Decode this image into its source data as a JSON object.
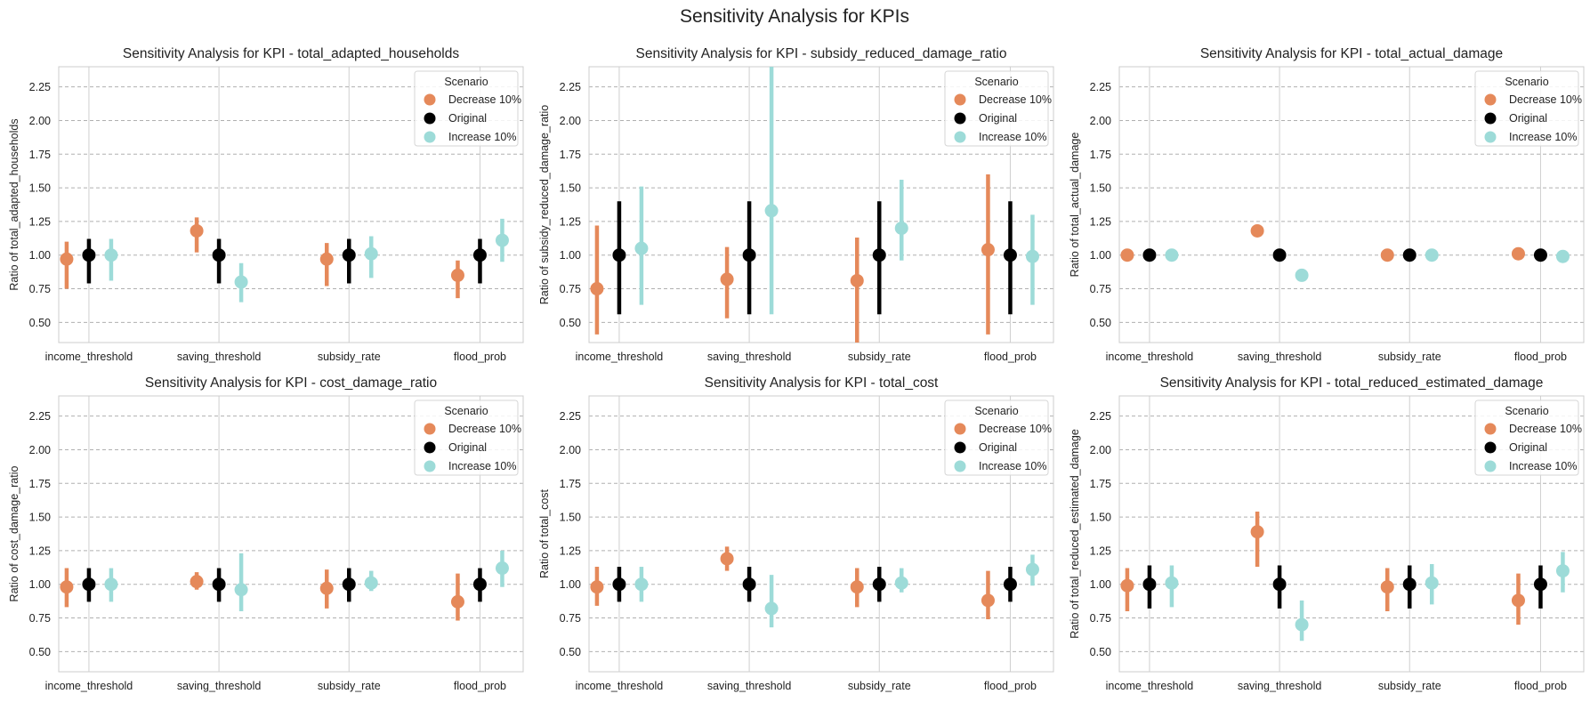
{
  "title": "Sensitivity Analysis for KPIs",
  "legend": {
    "title": "Scenario",
    "entries": [
      {
        "label": "Decrease 10%",
        "color": "#e5895a"
      },
      {
        "label": "Original",
        "color": "#000000"
      },
      {
        "label": "Increase 10%",
        "color": "#9ddbd8"
      }
    ],
    "location": "upper right"
  },
  "chart_data": [
    {
      "type": "pointplot",
      "title": "Sensitivity Analysis for KPI - total_adapted_households",
      "xlabel": "",
      "ylabel": "Ratio of total_adapted_households",
      "categories": [
        "income_threshold",
        "saving_threshold",
        "subsidy_rate",
        "flood_prob"
      ],
      "ylim": [
        0.35,
        2.4
      ],
      "yticks": [
        "0.50",
        "0.75",
        "1.00",
        "1.25",
        "1.50",
        "1.75",
        "2.00",
        "2.25"
      ],
      "series": [
        {
          "name": "Decrease 10%",
          "values": [
            0.97,
            1.18,
            0.97,
            0.85
          ],
          "ci_low": [
            0.75,
            1.02,
            0.77,
            0.68
          ],
          "ci_high": [
            1.1,
            1.28,
            1.09,
            0.96
          ]
        },
        {
          "name": "Original",
          "values": [
            1.0,
            1.0,
            1.0,
            1.0
          ],
          "ci_low": [
            0.79,
            0.79,
            0.79,
            0.79
          ],
          "ci_high": [
            1.12,
            1.12,
            1.12,
            1.12
          ]
        },
        {
          "name": "Increase 10%",
          "values": [
            1.0,
            0.8,
            1.01,
            1.11
          ],
          "ci_low": [
            0.81,
            0.65,
            0.83,
            0.95
          ],
          "ci_high": [
            1.12,
            0.94,
            1.14,
            1.27
          ]
        }
      ]
    },
    {
      "type": "pointplot",
      "title": "Sensitivity Analysis for KPI - subsidy_reduced_damage_ratio",
      "xlabel": "",
      "ylabel": "Ratio of subsidy_reduced_damage_ratio",
      "categories": [
        "income_threshold",
        "saving_threshold",
        "subsidy_rate",
        "flood_prob"
      ],
      "ylim": [
        0.35,
        2.4
      ],
      "yticks": [
        "0.50",
        "0.75",
        "1.00",
        "1.25",
        "1.50",
        "1.75",
        "2.00",
        "2.25"
      ],
      "series": [
        {
          "name": "Decrease 10%",
          "values": [
            0.75,
            0.82,
            0.81,
            1.04
          ],
          "ci_low": [
            0.41,
            0.53,
            0.35,
            0.41
          ],
          "ci_high": [
            1.22,
            1.06,
            1.13,
            1.6
          ]
        },
        {
          "name": "Original",
          "values": [
            1.0,
            1.0,
            1.0,
            1.0
          ],
          "ci_low": [
            0.56,
            0.56,
            0.56,
            0.56
          ],
          "ci_high": [
            1.4,
            1.4,
            1.4,
            1.4
          ]
        },
        {
          "name": "Increase 10%",
          "values": [
            1.05,
            1.33,
            1.2,
            0.99
          ],
          "ci_low": [
            0.63,
            0.56,
            0.96,
            0.63
          ],
          "ci_high": [
            1.51,
            2.4,
            1.56,
            1.3
          ]
        }
      ]
    },
    {
      "type": "pointplot",
      "title": "Sensitivity Analysis for KPI - total_actual_damage",
      "xlabel": "",
      "ylabel": "Ratio of total_actual_damage",
      "categories": [
        "income_threshold",
        "saving_threshold",
        "subsidy_rate",
        "flood_prob"
      ],
      "ylim": [
        0.35,
        2.4
      ],
      "yticks": [
        "0.50",
        "0.75",
        "1.00",
        "1.25",
        "1.50",
        "1.75",
        "2.00",
        "2.25"
      ],
      "series": [
        {
          "name": "Decrease 10%",
          "values": [
            1.0,
            1.18,
            1.0,
            1.01
          ],
          "ci_low": [
            1.0,
            1.17,
            1.0,
            1.0
          ],
          "ci_high": [
            1.0,
            1.19,
            1.0,
            1.02
          ]
        },
        {
          "name": "Original",
          "values": [
            1.0,
            1.0,
            1.0,
            1.0
          ],
          "ci_low": [
            1.0,
            1.0,
            1.0,
            1.0
          ],
          "ci_high": [
            1.0,
            1.0,
            1.0,
            1.0
          ]
        },
        {
          "name": "Increase 10%",
          "values": [
            1.0,
            0.85,
            1.0,
            0.99
          ],
          "ci_low": [
            1.0,
            0.84,
            1.0,
            0.98
          ],
          "ci_high": [
            1.0,
            0.86,
            1.0,
            1.0
          ]
        }
      ]
    },
    {
      "type": "pointplot",
      "title": "Sensitivity Analysis for KPI - cost_damage_ratio",
      "xlabel": "",
      "ylabel": "Ratio of cost_damage_ratio",
      "categories": [
        "income_threshold",
        "saving_threshold",
        "subsidy_rate",
        "flood_prob"
      ],
      "ylim": [
        0.35,
        2.4
      ],
      "yticks": [
        "0.50",
        "0.75",
        "1.00",
        "1.25",
        "1.50",
        "1.75",
        "2.00",
        "2.25"
      ],
      "series": [
        {
          "name": "Decrease 10%",
          "values": [
            0.98,
            1.02,
            0.97,
            0.87
          ],
          "ci_low": [
            0.83,
            0.96,
            0.82,
            0.73
          ],
          "ci_high": [
            1.12,
            1.09,
            1.11,
            1.08
          ]
        },
        {
          "name": "Original",
          "values": [
            1.0,
            1.0,
            1.0,
            1.0
          ],
          "ci_low": [
            0.87,
            0.87,
            0.87,
            0.87
          ],
          "ci_high": [
            1.12,
            1.12,
            1.12,
            1.12
          ]
        },
        {
          "name": "Increase 10%",
          "values": [
            1.0,
            0.96,
            1.01,
            1.12
          ],
          "ci_low": [
            0.87,
            0.8,
            0.95,
            0.98
          ],
          "ci_high": [
            1.12,
            1.23,
            1.1,
            1.25
          ]
        }
      ]
    },
    {
      "type": "pointplot",
      "title": "Sensitivity Analysis for KPI - total_cost",
      "xlabel": "",
      "ylabel": "Ratio of total_cost",
      "categories": [
        "income_threshold",
        "saving_threshold",
        "subsidy_rate",
        "flood_prob"
      ],
      "ylim": [
        0.35,
        2.4
      ],
      "yticks": [
        "0.50",
        "0.75",
        "1.00",
        "1.25",
        "1.50",
        "1.75",
        "2.00",
        "2.25"
      ],
      "series": [
        {
          "name": "Decrease 10%",
          "values": [
            0.98,
            1.19,
            0.98,
            0.88
          ],
          "ci_low": [
            0.84,
            1.1,
            0.83,
            0.74
          ],
          "ci_high": [
            1.13,
            1.28,
            1.12,
            1.1
          ]
        },
        {
          "name": "Original",
          "values": [
            1.0,
            1.0,
            1.0,
            1.0
          ],
          "ci_low": [
            0.87,
            0.87,
            0.87,
            0.87
          ],
          "ci_high": [
            1.13,
            1.13,
            1.13,
            1.13
          ]
        },
        {
          "name": "Increase 10%",
          "values": [
            1.0,
            0.82,
            1.01,
            1.11
          ],
          "ci_low": [
            0.87,
            0.68,
            0.94,
            0.99
          ],
          "ci_high": [
            1.13,
            1.07,
            1.12,
            1.22
          ]
        }
      ]
    },
    {
      "type": "pointplot",
      "title": "Sensitivity Analysis for KPI - total_reduced_estimated_damage",
      "xlabel": "",
      "ylabel": "Ratio of total_reduced_estimated_damage",
      "categories": [
        "income_threshold",
        "saving_threshold",
        "subsidy_rate",
        "flood_prob"
      ],
      "ylim": [
        0.35,
        2.4
      ],
      "yticks": [
        "0.50",
        "0.75",
        "1.00",
        "1.25",
        "1.50",
        "1.75",
        "2.00",
        "2.25"
      ],
      "series": [
        {
          "name": "Decrease 10%",
          "values": [
            0.99,
            1.39,
            0.98,
            0.88
          ],
          "ci_low": [
            0.8,
            1.13,
            0.8,
            0.7
          ],
          "ci_high": [
            1.12,
            1.54,
            1.12,
            1.08
          ]
        },
        {
          "name": "Original",
          "values": [
            1.0,
            1.0,
            1.0,
            1.0
          ],
          "ci_low": [
            0.82,
            0.82,
            0.82,
            0.82
          ],
          "ci_high": [
            1.14,
            1.14,
            1.14,
            1.14
          ]
        },
        {
          "name": "Increase 10%",
          "values": [
            1.01,
            0.7,
            1.01,
            1.1
          ],
          "ci_low": [
            0.83,
            0.58,
            0.85,
            0.94
          ],
          "ci_high": [
            1.14,
            0.88,
            1.15,
            1.24
          ]
        }
      ]
    }
  ]
}
